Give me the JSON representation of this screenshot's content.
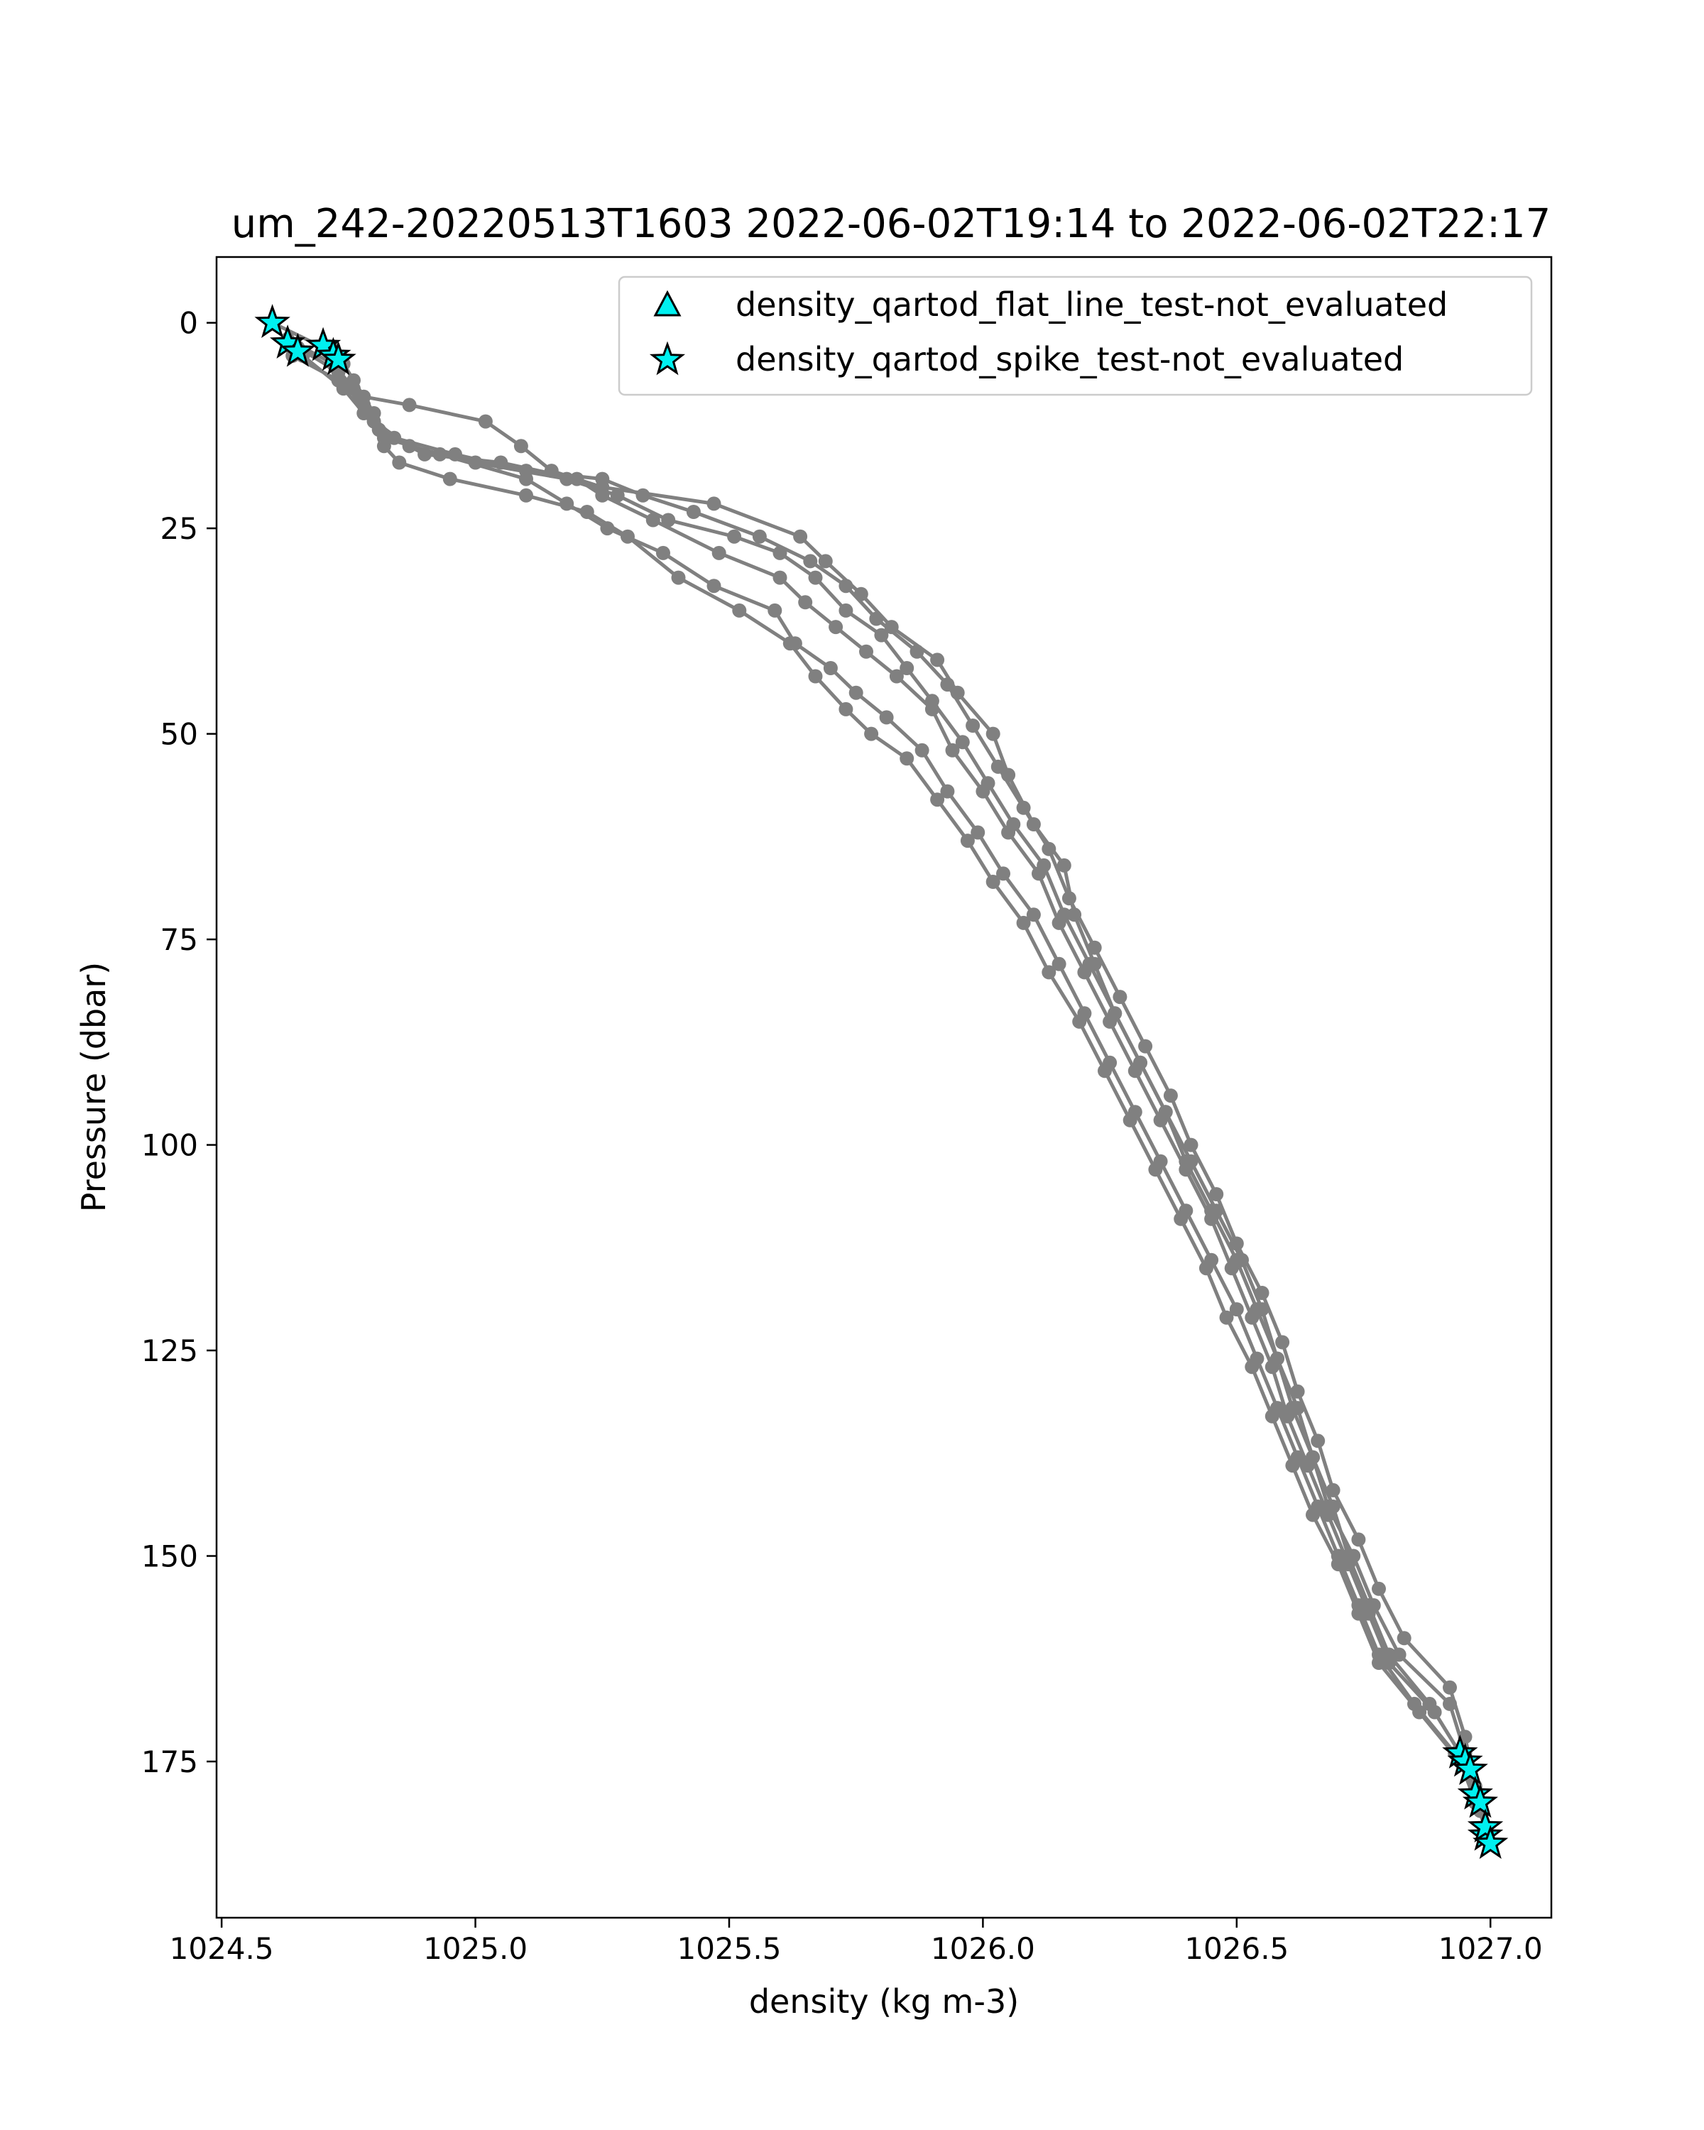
{
  "chart_data": {
    "type": "line",
    "title": "um_242-20220513T1603 2022-06-02T19:14 to 2022-06-02T22:17",
    "xlabel": "density (kg m-3)",
    "ylabel": "Pressure (dbar)",
    "xlim": [
      1024.49,
      1027.12
    ],
    "ylim": [
      194,
      -8
    ],
    "y_inverted": true,
    "xticks": [
      1024.5,
      1025.0,
      1025.5,
      1026.0,
      1026.5,
      1027.0
    ],
    "xtick_labels": [
      "1024.5",
      "1025.0",
      "1025.5",
      "1026.0",
      "1026.5",
      "1027.0"
    ],
    "yticks": [
      0,
      25,
      50,
      75,
      100,
      125,
      150,
      175
    ],
    "ytick_labels": [
      "0",
      "25",
      "50",
      "75",
      "100",
      "125",
      "150",
      "175"
    ],
    "grid": false,
    "legend_position": "top-right",
    "line_color": "#808080",
    "marker_color": "#00f0f0",
    "legend": [
      {
        "label": "density_qartod_flat_line_test-not_evaluated",
        "marker": "triangle"
      },
      {
        "label": "density_qartod_spike_test-not_evaluated",
        "marker": "star"
      }
    ],
    "series": [
      {
        "points": [
          [
            1024.6,
            0
          ],
          [
            1024.7,
            3
          ],
          [
            1024.74,
            5
          ],
          [
            1024.78,
            9
          ],
          [
            1024.87,
            10
          ],
          [
            1025.02,
            12
          ],
          [
            1025.09,
            15
          ],
          [
            1025.15,
            18
          ],
          [
            1025.25,
            20
          ],
          [
            1025.47,
            22
          ],
          [
            1025.64,
            26
          ],
          [
            1025.69,
            29
          ],
          [
            1025.76,
            33
          ],
          [
            1025.82,
            37
          ],
          [
            1025.91,
            41
          ],
          [
            1025.95,
            45
          ],
          [
            1026.02,
            50
          ],
          [
            1026.05,
            55
          ],
          [
            1026.1,
            61
          ],
          [
            1026.16,
            66
          ],
          [
            1026.18,
            72
          ],
          [
            1026.22,
            78
          ],
          [
            1026.26,
            84
          ],
          [
            1026.31,
            90
          ],
          [
            1026.36,
            96
          ],
          [
            1026.4,
            102
          ],
          [
            1026.45,
            108
          ],
          [
            1026.5,
            114
          ],
          [
            1026.54,
            120
          ],
          [
            1026.58,
            126
          ],
          [
            1026.62,
            132
          ],
          [
            1026.65,
            138
          ],
          [
            1026.68,
            144
          ],
          [
            1026.73,
            150
          ],
          [
            1026.77,
            156
          ],
          [
            1026.82,
            162
          ],
          [
            1026.92,
            168
          ],
          [
            1026.95,
            174
          ]
        ]
      },
      {
        "points": [
          [
            1024.63,
            2
          ],
          [
            1024.72,
            5
          ],
          [
            1024.76,
            8
          ],
          [
            1024.79,
            11
          ],
          [
            1024.84,
            14
          ],
          [
            1024.96,
            16
          ],
          [
            1025.1,
            18
          ],
          [
            1025.25,
            19
          ],
          [
            1025.33,
            21
          ],
          [
            1025.43,
            23
          ],
          [
            1025.56,
            26
          ],
          [
            1025.66,
            29
          ],
          [
            1025.73,
            32
          ],
          [
            1025.79,
            36
          ],
          [
            1025.87,
            40
          ],
          [
            1025.93,
            44
          ],
          [
            1025.98,
            49
          ],
          [
            1026.03,
            54
          ],
          [
            1026.08,
            59
          ],
          [
            1026.13,
            64
          ],
          [
            1026.17,
            70
          ],
          [
            1026.22,
            76
          ],
          [
            1026.27,
            82
          ],
          [
            1026.32,
            88
          ],
          [
            1026.37,
            94
          ],
          [
            1026.41,
            100
          ],
          [
            1026.46,
            106
          ],
          [
            1026.5,
            112
          ],
          [
            1026.55,
            118
          ],
          [
            1026.59,
            124
          ],
          [
            1026.62,
            130
          ],
          [
            1026.66,
            136
          ],
          [
            1026.69,
            142
          ],
          [
            1026.74,
            148
          ],
          [
            1026.78,
            154
          ],
          [
            1026.83,
            160
          ],
          [
            1026.92,
            166
          ],
          [
            1026.95,
            172
          ],
          [
            1026.97,
            178
          ]
        ]
      },
      {
        "points": [
          [
            1024.65,
            3
          ],
          [
            1024.73,
            6
          ],
          [
            1024.77,
            9
          ],
          [
            1024.8,
            12
          ],
          [
            1024.87,
            15
          ],
          [
            1025.0,
            17
          ],
          [
            1025.18,
            19
          ],
          [
            1025.28,
            21
          ],
          [
            1025.38,
            24
          ],
          [
            1025.51,
            26
          ],
          [
            1025.6,
            28
          ],
          [
            1025.67,
            31
          ],
          [
            1025.73,
            35
          ],
          [
            1025.8,
            38
          ],
          [
            1025.85,
            42
          ],
          [
            1025.9,
            46
          ],
          [
            1025.96,
            51
          ],
          [
            1026.01,
            56
          ],
          [
            1026.06,
            61
          ],
          [
            1026.12,
            66
          ],
          [
            1026.16,
            72
          ],
          [
            1026.21,
            78
          ],
          [
            1026.26,
            84
          ],
          [
            1026.31,
            90
          ],
          [
            1026.36,
            96
          ],
          [
            1026.41,
            102
          ],
          [
            1026.46,
            108
          ],
          [
            1026.51,
            114
          ],
          [
            1026.55,
            120
          ],
          [
            1026.58,
            126
          ],
          [
            1026.61,
            132
          ],
          [
            1026.65,
            138
          ],
          [
            1026.69,
            144
          ],
          [
            1026.72,
            150
          ],
          [
            1026.76,
            156
          ],
          [
            1026.8,
            162
          ],
          [
            1026.88,
            168
          ],
          [
            1026.94,
            174
          ],
          [
            1026.97,
            180
          ]
        ]
      },
      {
        "points": [
          [
            1024.64,
            4
          ],
          [
            1024.73,
            7
          ],
          [
            1024.78,
            10
          ],
          [
            1024.81,
            13
          ],
          [
            1024.9,
            16
          ],
          [
            1025.05,
            17
          ],
          [
            1025.2,
            19
          ],
          [
            1025.25,
            21
          ],
          [
            1025.35,
            24
          ],
          [
            1025.48,
            28
          ],
          [
            1025.6,
            31
          ],
          [
            1025.65,
            34
          ],
          [
            1025.71,
            37
          ],
          [
            1025.77,
            40
          ],
          [
            1025.83,
            43
          ],
          [
            1025.9,
            47
          ],
          [
            1025.94,
            52
          ],
          [
            1026.0,
            57
          ],
          [
            1026.05,
            62
          ],
          [
            1026.11,
            67
          ],
          [
            1026.15,
            73
          ],
          [
            1026.2,
            79
          ],
          [
            1026.25,
            85
          ],
          [
            1026.3,
            91
          ],
          [
            1026.35,
            97
          ],
          [
            1026.4,
            103
          ],
          [
            1026.45,
            109
          ],
          [
            1026.49,
            115
          ],
          [
            1026.53,
            121
          ],
          [
            1026.57,
            127
          ],
          [
            1026.6,
            133
          ],
          [
            1026.64,
            139
          ],
          [
            1026.68,
            145
          ],
          [
            1026.72,
            151
          ],
          [
            1026.76,
            157
          ],
          [
            1026.8,
            163
          ],
          [
            1026.89,
            169
          ],
          [
            1026.95,
            175
          ],
          [
            1026.98,
            181
          ]
        ]
      },
      {
        "points": [
          [
            1024.66,
            4
          ],
          [
            1024.74,
            8
          ],
          [
            1024.78,
            11
          ],
          [
            1024.82,
            14
          ],
          [
            1024.93,
            16
          ],
          [
            1025.1,
            19
          ],
          [
            1025.18,
            22
          ],
          [
            1025.26,
            25
          ],
          [
            1025.37,
            28
          ],
          [
            1025.47,
            32
          ],
          [
            1025.59,
            35
          ],
          [
            1025.63,
            39
          ],
          [
            1025.7,
            42
          ],
          [
            1025.75,
            45
          ],
          [
            1025.81,
            48
          ],
          [
            1025.88,
            52
          ],
          [
            1025.93,
            57
          ],
          [
            1025.99,
            62
          ],
          [
            1026.04,
            67
          ],
          [
            1026.1,
            72
          ],
          [
            1026.15,
            78
          ],
          [
            1026.2,
            84
          ],
          [
            1026.25,
            90
          ],
          [
            1026.3,
            96
          ],
          [
            1026.35,
            102
          ],
          [
            1026.4,
            108
          ],
          [
            1026.45,
            114
          ],
          [
            1026.5,
            120
          ],
          [
            1026.54,
            126
          ],
          [
            1026.58,
            132
          ],
          [
            1026.62,
            138
          ],
          [
            1026.66,
            144
          ],
          [
            1026.7,
            150
          ],
          [
            1026.74,
            156
          ],
          [
            1026.78,
            162
          ],
          [
            1026.85,
            168
          ],
          [
            1026.93,
            174
          ],
          [
            1026.98,
            180
          ],
          [
            1026.99,
            184
          ]
        ]
      },
      {
        "points": [
          [
            1024.72,
            3
          ],
          [
            1024.76,
            7
          ],
          [
            1024.8,
            11
          ],
          [
            1024.82,
            15
          ],
          [
            1024.85,
            17
          ],
          [
            1024.95,
            19
          ],
          [
            1025.1,
            21
          ],
          [
            1025.22,
            23
          ],
          [
            1025.3,
            26
          ],
          [
            1025.4,
            31
          ],
          [
            1025.52,
            35
          ],
          [
            1025.62,
            39
          ],
          [
            1025.67,
            43
          ],
          [
            1025.73,
            47
          ],
          [
            1025.78,
            50
          ],
          [
            1025.85,
            53
          ],
          [
            1025.91,
            58
          ],
          [
            1025.97,
            63
          ],
          [
            1026.02,
            68
          ],
          [
            1026.08,
            73
          ],
          [
            1026.13,
            79
          ],
          [
            1026.19,
            85
          ],
          [
            1026.24,
            91
          ],
          [
            1026.29,
            97
          ],
          [
            1026.34,
            103
          ],
          [
            1026.39,
            109
          ],
          [
            1026.44,
            115
          ],
          [
            1026.48,
            121
          ],
          [
            1026.53,
            127
          ],
          [
            1026.57,
            133
          ],
          [
            1026.61,
            139
          ],
          [
            1026.65,
            145
          ],
          [
            1026.7,
            151
          ],
          [
            1026.74,
            157
          ],
          [
            1026.78,
            163
          ],
          [
            1026.86,
            169
          ],
          [
            1026.94,
            175
          ],
          [
            1026.99,
            183
          ],
          [
            1027.0,
            185
          ]
        ]
      }
    ],
    "flagged_stars": [
      [
        1024.6,
        0
      ],
      [
        1024.63,
        2.5
      ],
      [
        1024.65,
        3.5
      ],
      [
        1024.7,
        2.8
      ],
      [
        1024.72,
        4
      ],
      [
        1024.73,
        4.5
      ],
      [
        1026.94,
        174
      ],
      [
        1026.95,
        175
      ],
      [
        1026.96,
        176
      ],
      [
        1026.97,
        179
      ],
      [
        1026.98,
        180
      ],
      [
        1026.99,
        184
      ],
      [
        1026.99,
        183
      ],
      [
        1027.0,
        185
      ]
    ]
  }
}
